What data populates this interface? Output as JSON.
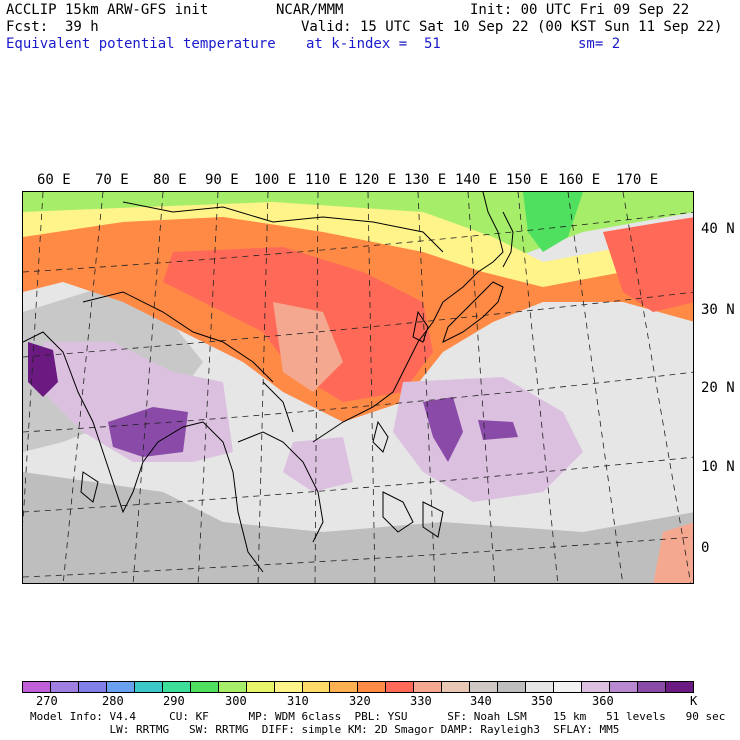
{
  "header": {
    "line1_left": "ACCLIP 15km ARW-GFS init",
    "line1_center": "NCAR/MMM",
    "line1_right": "Init: 00 UTC Fri 09 Sep 22",
    "line2_left": "Fcst:  39 h",
    "line2_right": "Valid: 15 UTC Sat 10 Sep 22 (00 KST Sun 11 Sep 22)",
    "line3_left": "Equivalent potential temperature",
    "line3_center": "at k-index =  51",
    "line3_right": "sm= 2"
  },
  "map": {
    "lon_labels": [
      "60 E",
      "70 E",
      "80 E",
      "90 E",
      "100 E",
      "110 E",
      "120 E",
      "130 E",
      "140 E",
      "150 E",
      "160 E",
      "170 E"
    ],
    "lat_labels": [
      "40 N",
      "30 N",
      "20 N",
      "10 N",
      "0"
    ]
  },
  "colorbar": {
    "unit": "K",
    "labels": [
      "270",
      "280",
      "290",
      "300",
      "310",
      "320",
      "330",
      "340",
      "350",
      "360"
    ],
    "colors": [
      "#c060d8",
      "#9f7fe0",
      "#8080e8",
      "#6aa0f0",
      "#3cc8c8",
      "#3cde9a",
      "#50e060",
      "#a6ee6a",
      "#e8f46a",
      "#fff48a",
      "#ffdc6a",
      "#ffb050",
      "#ff8a46",
      "#ff6a58",
      "#f4a890",
      "#e8c8b4",
      "#d0c8c4",
      "#bebebe",
      "#e6e6e6",
      "#f2f2f2",
      "#dcc0e0",
      "#b888d0",
      "#8a4aa8",
      "#6a1a80"
    ]
  },
  "model_info": {
    "line1": "Model Info: V4.4     CU: KF      MP: WDM 6class  PBL: YSU      SF: Noah LSM    15 km   51 levels   90 sec",
    "line2": "            LW: RRTMG   SW: RRTMG  DIFF: simple KM: 2D Smagor DAMP: Rayleigh3  SFLAY: MM5"
  }
}
